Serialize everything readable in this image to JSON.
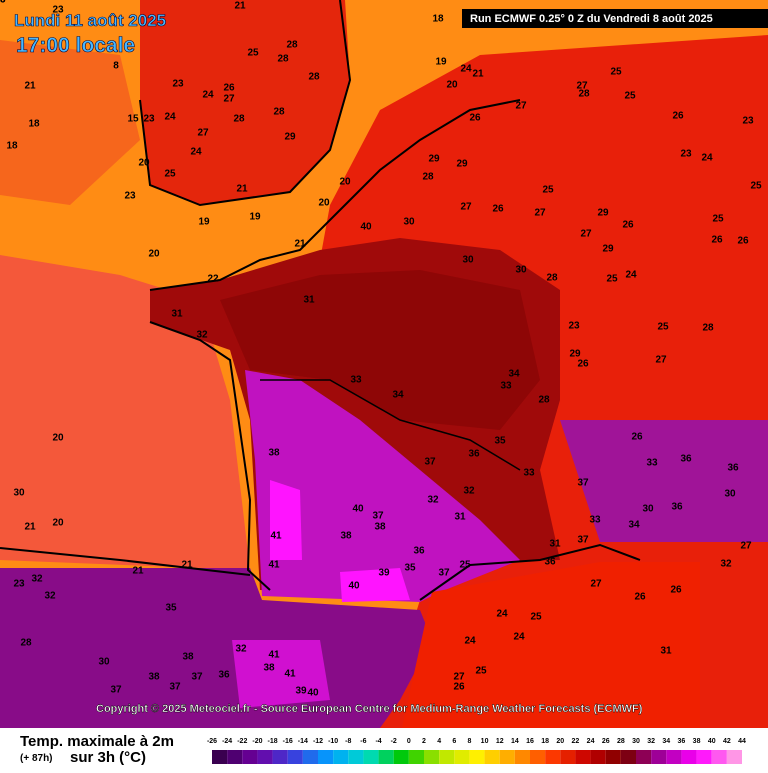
{
  "header": {
    "date": "Lundi 11 août 2025",
    "time": "17:00 locale",
    "run": "Run ECMWF 0.25° 0 Z du Vendredi 8 août 2025"
  },
  "copyright": "Copyright © 2025 Meteociel.fr - Source European Centre for Medium-Range Weather Forecasts (ECMWF)",
  "legend": {
    "title": "Temp. maximale à 2m",
    "offset": "(+ 87h)",
    "subtitle": "sur 3h (°C)",
    "scale": [
      -26,
      -24,
      -22,
      -20,
      -18,
      -16,
      -14,
      -12,
      -10,
      -8,
      -6,
      -4,
      -2,
      0,
      2,
      4,
      6,
      8,
      10,
      12,
      14,
      16,
      18,
      20,
      22,
      24,
      26,
      28,
      30,
      32,
      34,
      36,
      38,
      40,
      42,
      44
    ]
  },
  "map": {
    "labels": [
      23,
      21,
      18,
      8,
      25,
      28,
      28,
      28,
      19,
      24,
      21,
      20,
      21,
      23,
      24,
      26,
      27,
      18,
      18,
      15,
      23,
      24,
      27,
      28,
      28,
      29,
      24,
      20,
      25,
      21,
      23,
      20,
      20,
      19,
      19,
      21,
      20,
      22,
      30,
      30,
      30,
      31,
      31,
      32,
      33,
      34,
      34,
      33,
      28,
      35,
      33,
      38,
      37,
      36,
      32,
      32,
      31,
      41,
      38,
      40,
      37,
      38,
      36,
      35,
      39,
      40,
      37,
      25,
      36,
      27,
      26,
      26,
      24,
      25,
      24,
      24,
      27,
      26,
      25,
      31,
      25,
      27,
      28,
      25,
      26,
      27,
      26,
      29,
      29,
      28,
      27,
      26,
      25,
      27,
      29,
      26,
      27,
      29,
      26,
      26,
      25,
      25,
      23,
      24,
      23,
      28,
      25,
      24,
      23,
      29,
      26,
      28,
      25,
      27,
      26,
      33,
      36,
      36,
      37,
      36,
      30,
      30,
      34,
      33,
      32,
      27,
      37,
      31,
      30,
      20,
      21,
      20,
      21,
      21,
      23,
      32,
      32,
      28,
      30,
      37,
      38,
      37,
      37,
      36,
      35,
      38,
      32,
      41,
      38,
      41,
      39,
      40,
      41,
      40,
      30,
      28
    ]
  }
}
